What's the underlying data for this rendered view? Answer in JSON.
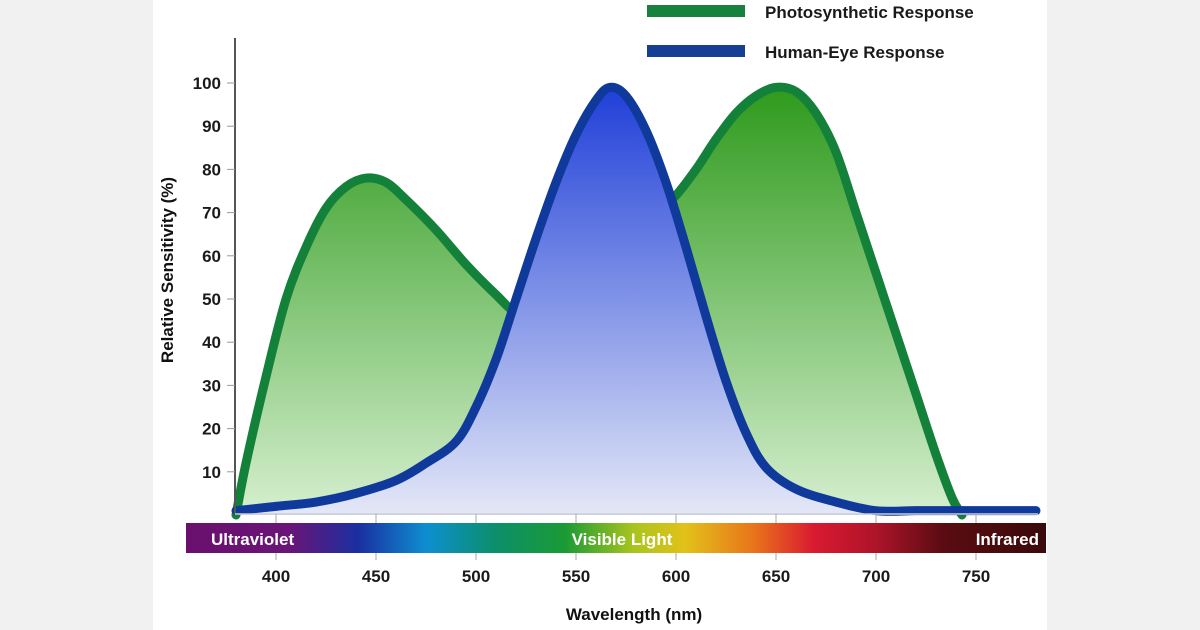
{
  "chart_data": {
    "type": "area",
    "title": "",
    "xlabel": "Wavelength (nm)",
    "ylabel": "Relative Sensitivity (%)",
    "xlim": [
      380,
      785
    ],
    "ylim": [
      0,
      105
    ],
    "x_ticks": [
      400,
      450,
      500,
      550,
      600,
      650,
      700,
      750
    ],
    "y_ticks": [
      10,
      20,
      30,
      40,
      50,
      60,
      70,
      80,
      90,
      100
    ],
    "grid": false,
    "legend_position": "top-right",
    "series": [
      {
        "name": "Photosynthetic Response",
        "color": "#13813a",
        "fill_top": "#2e9a1c",
        "fill_bottom": "#d6efcf",
        "points": [
          [
            380,
            0
          ],
          [
            385,
            12
          ],
          [
            395,
            32
          ],
          [
            405,
            50
          ],
          [
            415,
            62
          ],
          [
            425,
            71
          ],
          [
            435,
            76
          ],
          [
            445,
            78
          ],
          [
            455,
            77
          ],
          [
            465,
            73
          ],
          [
            480,
            66
          ],
          [
            495,
            58
          ],
          [
            510,
            51
          ],
          [
            520,
            47
          ],
          [
            530,
            48
          ],
          [
            550,
            55
          ],
          [
            570,
            63
          ],
          [
            590,
            70
          ],
          [
            600,
            74
          ],
          [
            610,
            80
          ],
          [
            620,
            87
          ],
          [
            630,
            93
          ],
          [
            640,
            97
          ],
          [
            650,
            99
          ],
          [
            660,
            98
          ],
          [
            670,
            93
          ],
          [
            680,
            84
          ],
          [
            690,
            70
          ],
          [
            700,
            56
          ],
          [
            710,
            42
          ],
          [
            720,
            28
          ],
          [
            730,
            14
          ],
          [
            738,
            4
          ],
          [
            743,
            0
          ]
        ]
      },
      {
        "name": "Human-Eye Response",
        "color": "#10399c",
        "fill_top": "#1f3fd8",
        "fill_bottom": "#e4e8f7",
        "points": [
          [
            380,
            1
          ],
          [
            400,
            2
          ],
          [
            420,
            3
          ],
          [
            440,
            5
          ],
          [
            460,
            8
          ],
          [
            475,
            12
          ],
          [
            490,
            17
          ],
          [
            500,
            25
          ],
          [
            510,
            36
          ],
          [
            520,
            50
          ],
          [
            530,
            64
          ],
          [
            540,
            77
          ],
          [
            550,
            88
          ],
          [
            560,
            96
          ],
          [
            567,
            99
          ],
          [
            575,
            97
          ],
          [
            585,
            89
          ],
          [
            595,
            77
          ],
          [
            605,
            62
          ],
          [
            615,
            46
          ],
          [
            625,
            31
          ],
          [
            635,
            19
          ],
          [
            645,
            11
          ],
          [
            660,
            6
          ],
          [
            680,
            3
          ],
          [
            700,
            1
          ],
          [
            720,
            1
          ],
          [
            740,
            1
          ],
          [
            760,
            1
          ],
          [
            780,
            1
          ]
        ]
      }
    ],
    "spectrum_band": {
      "labels": [
        "Ultraviolet",
        "Visible Light",
        "Infrared"
      ],
      "stops": [
        [
          "0%",
          "#6a0f6e"
        ],
        [
          "12%",
          "#6a1577"
        ],
        [
          "20%",
          "#1a2fa0"
        ],
        [
          "28%",
          "#0d8fd0"
        ],
        [
          "36%",
          "#0c8f6a"
        ],
        [
          "44%",
          "#1a9a35"
        ],
        [
          "52%",
          "#a8c41e"
        ],
        [
          "58%",
          "#e2c21a"
        ],
        [
          "66%",
          "#e9741a"
        ],
        [
          "73%",
          "#d91a30"
        ],
        [
          "80%",
          "#b0142a"
        ],
        [
          "88%",
          "#5a0c12"
        ],
        [
          "100%",
          "#3a0a0a"
        ]
      ]
    }
  },
  "legend": {
    "items": [
      {
        "label": "Photosynthetic Response",
        "color": "#17823d"
      },
      {
        "label": "Human-Eye Response",
        "color": "#153f94"
      }
    ]
  },
  "axes": {
    "x_title": "Wavelength (nm)",
    "y_title": "Relative Sensitivity (%)",
    "x_tick_labels": [
      "400",
      "450",
      "500",
      "550",
      "600",
      "650",
      "700",
      "750"
    ],
    "y_tick_labels": [
      "10",
      "20",
      "30",
      "40",
      "50",
      "60",
      "70",
      "80",
      "90",
      "100"
    ]
  },
  "band": {
    "left_label": "Ultraviolet",
    "center_label": "Visible Light",
    "right_label": "Infrared"
  }
}
